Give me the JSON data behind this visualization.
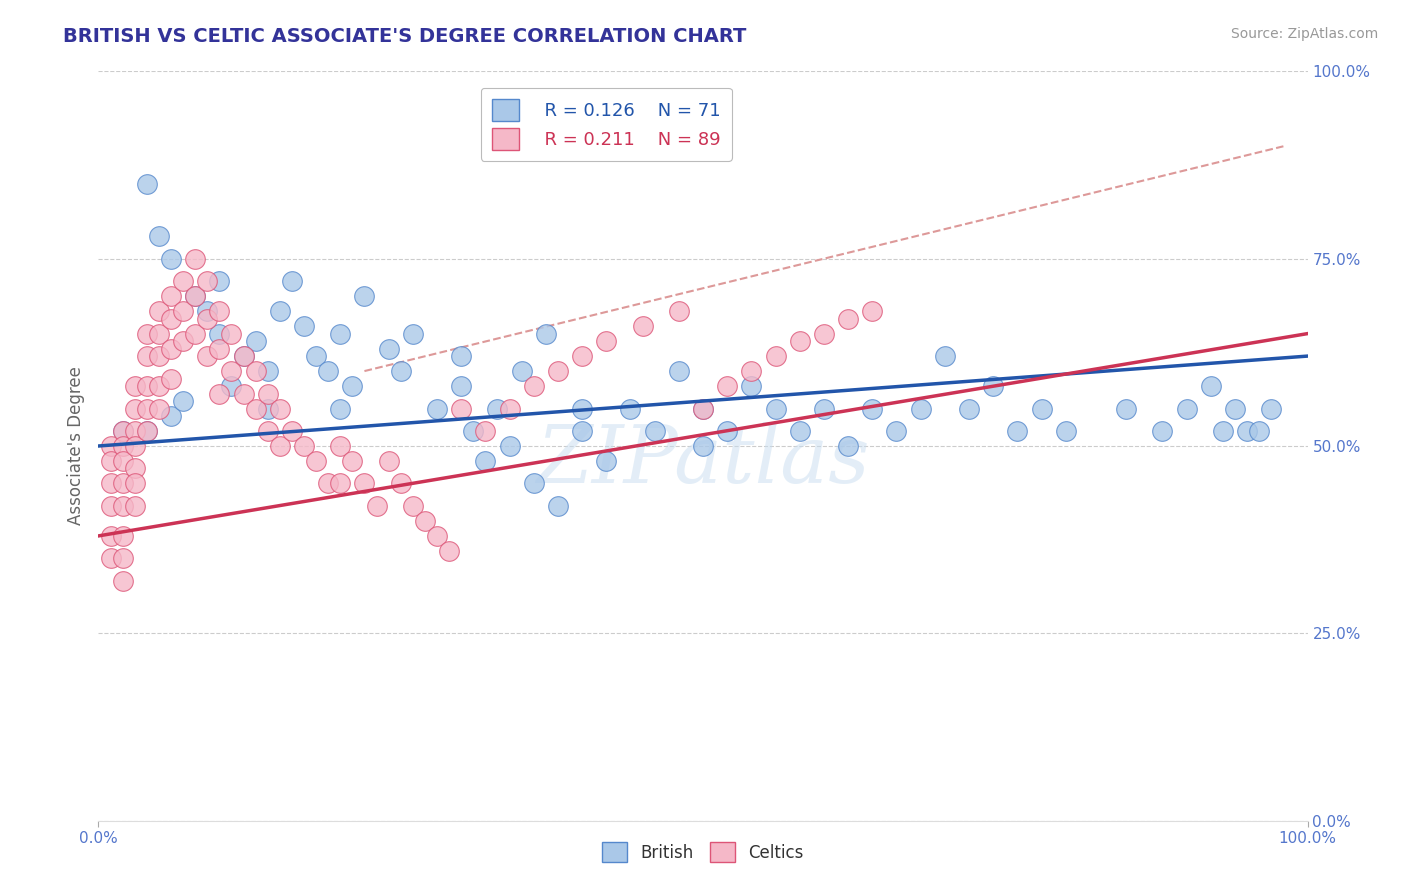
{
  "title": "BRITISH VS CELTIC ASSOCIATE'S DEGREE CORRELATION CHART",
  "source": "Source: ZipAtlas.com",
  "ylabel": "Associate's Degree",
  "xlim": [
    0.0,
    1.0
  ],
  "ylim": [
    0.0,
    1.0
  ],
  "watermark": "ZIPatlas",
  "legend_r_british": "R = 0.126",
  "legend_n_british": "N = 71",
  "legend_r_celtics": "R = 0.211",
  "legend_n_celtics": "N = 89",
  "british_color": "#aac8e8",
  "celtics_color": "#f5b8c8",
  "british_edge_color": "#5588cc",
  "celtics_edge_color": "#dd5577",
  "british_line_color": "#2255aa",
  "celtics_line_color": "#cc3355",
  "trendline_dashed_color": "#dd9999",
  "background_color": "#ffffff",
  "grid_color": "#cccccc",
  "title_color": "#333399",
  "axis_label_color": "#5577cc",
  "british_scatter_x": [
    0.02,
    0.04,
    0.04,
    0.05,
    0.06,
    0.06,
    0.07,
    0.08,
    0.09,
    0.1,
    0.1,
    0.11,
    0.12,
    0.13,
    0.14,
    0.14,
    0.15,
    0.16,
    0.17,
    0.18,
    0.19,
    0.2,
    0.2,
    0.21,
    0.22,
    0.24,
    0.25,
    0.26,
    0.28,
    0.3,
    0.3,
    0.31,
    0.32,
    0.33,
    0.34,
    0.35,
    0.36,
    0.37,
    0.38,
    0.4,
    0.4,
    0.42,
    0.44,
    0.46,
    0.48,
    0.5,
    0.5,
    0.52,
    0.54,
    0.56,
    0.58,
    0.6,
    0.62,
    0.64,
    0.66,
    0.68,
    0.7,
    0.72,
    0.74,
    0.76,
    0.78,
    0.8,
    0.85,
    0.88,
    0.9,
    0.92,
    0.93,
    0.94,
    0.95,
    0.96,
    0.97
  ],
  "british_scatter_y": [
    0.52,
    0.85,
    0.52,
    0.78,
    0.54,
    0.75,
    0.56,
    0.7,
    0.68,
    0.72,
    0.65,
    0.58,
    0.62,
    0.64,
    0.6,
    0.55,
    0.68,
    0.72,
    0.66,
    0.62,
    0.6,
    0.65,
    0.55,
    0.58,
    0.7,
    0.63,
    0.6,
    0.65,
    0.55,
    0.58,
    0.62,
    0.52,
    0.48,
    0.55,
    0.5,
    0.6,
    0.45,
    0.65,
    0.42,
    0.52,
    0.55,
    0.48,
    0.55,
    0.52,
    0.6,
    0.55,
    0.5,
    0.52,
    0.58,
    0.55,
    0.52,
    0.55,
    0.5,
    0.55,
    0.52,
    0.55,
    0.62,
    0.55,
    0.58,
    0.52,
    0.55,
    0.52,
    0.55,
    0.52,
    0.55,
    0.58,
    0.52,
    0.55,
    0.52,
    0.52,
    0.55
  ],
  "celtics_scatter_x": [
    0.01,
    0.01,
    0.01,
    0.01,
    0.01,
    0.01,
    0.02,
    0.02,
    0.02,
    0.02,
    0.02,
    0.02,
    0.02,
    0.02,
    0.03,
    0.03,
    0.03,
    0.03,
    0.03,
    0.03,
    0.03,
    0.04,
    0.04,
    0.04,
    0.04,
    0.04,
    0.05,
    0.05,
    0.05,
    0.05,
    0.05,
    0.06,
    0.06,
    0.06,
    0.06,
    0.07,
    0.07,
    0.07,
    0.08,
    0.08,
    0.08,
    0.09,
    0.09,
    0.09,
    0.1,
    0.1,
    0.1,
    0.11,
    0.11,
    0.12,
    0.12,
    0.13,
    0.13,
    0.14,
    0.14,
    0.15,
    0.15,
    0.16,
    0.17,
    0.18,
    0.19,
    0.2,
    0.2,
    0.21,
    0.22,
    0.23,
    0.24,
    0.25,
    0.26,
    0.27,
    0.28,
    0.29,
    0.3,
    0.32,
    0.34,
    0.36,
    0.38,
    0.4,
    0.42,
    0.45,
    0.48,
    0.5,
    0.52,
    0.54,
    0.56,
    0.58,
    0.6,
    0.62,
    0.64
  ],
  "celtics_scatter_y": [
    0.5,
    0.48,
    0.45,
    0.42,
    0.38,
    0.35,
    0.52,
    0.5,
    0.48,
    0.45,
    0.42,
    0.38,
    0.35,
    0.32,
    0.58,
    0.55,
    0.52,
    0.5,
    0.47,
    0.45,
    0.42,
    0.65,
    0.62,
    0.58,
    0.55,
    0.52,
    0.68,
    0.65,
    0.62,
    0.58,
    0.55,
    0.7,
    0.67,
    0.63,
    0.59,
    0.72,
    0.68,
    0.64,
    0.75,
    0.7,
    0.65,
    0.72,
    0.67,
    0.62,
    0.68,
    0.63,
    0.57,
    0.65,
    0.6,
    0.62,
    0.57,
    0.6,
    0.55,
    0.57,
    0.52,
    0.55,
    0.5,
    0.52,
    0.5,
    0.48,
    0.45,
    0.5,
    0.45,
    0.48,
    0.45,
    0.42,
    0.48,
    0.45,
    0.42,
    0.4,
    0.38,
    0.36,
    0.55,
    0.52,
    0.55,
    0.58,
    0.6,
    0.62,
    0.64,
    0.66,
    0.68,
    0.55,
    0.58,
    0.6,
    0.62,
    0.64,
    0.65,
    0.67,
    0.68
  ],
  "british_trend_x": [
    0.0,
    1.0
  ],
  "british_trend_y": [
    0.5,
    0.62
  ],
  "celtics_trend_x": [
    0.0,
    1.0
  ],
  "celtics_trend_y": [
    0.38,
    0.65
  ],
  "dashed_trend_x": [
    0.22,
    0.98
  ],
  "dashed_trend_y": [
    0.6,
    0.9
  ]
}
